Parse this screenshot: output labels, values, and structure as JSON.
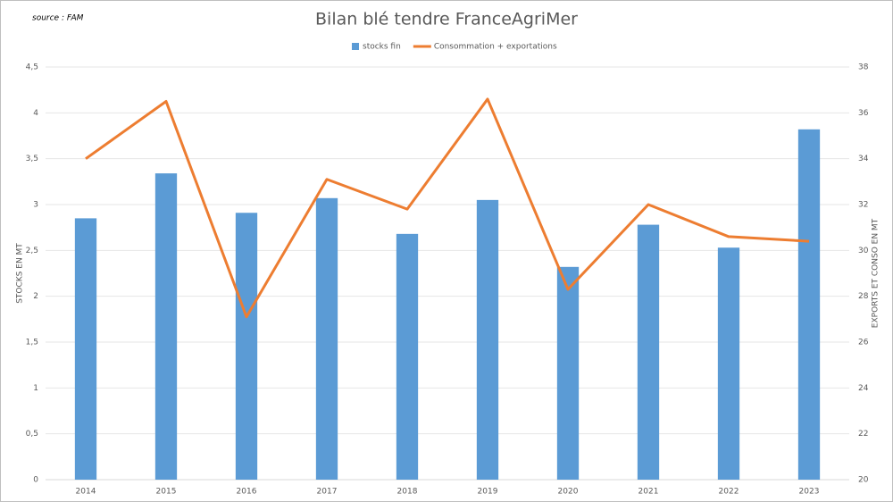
{
  "chart_data": {
    "type": "bar",
    "title": "Bilan blé tendre FranceAgriMer",
    "source": "source : FAM",
    "y_label": "STOCKS EN MT",
    "y2_label": "EXPORTS ET CONSO EN MT",
    "categories": [
      "2014",
      "2015",
      "2016",
      "2017",
      "2018",
      "2019",
      "2020",
      "2021",
      "2022",
      "2023"
    ],
    "series": [
      {
        "name": "stocks fin",
        "type": "bar",
        "color": "#5b9bd5",
        "values": [
          2.85,
          3.34,
          2.91,
          3.07,
          2.68,
          3.05,
          2.32,
          2.78,
          2.53,
          3.82
        ]
      },
      {
        "name": "Consommation + exportations",
        "type": "line",
        "axis": "y2",
        "color": "#ed7d31",
        "values": [
          34.0,
          36.5,
          27.1,
          33.1,
          31.8,
          36.6,
          28.3,
          32.0,
          30.6,
          30.4
        ]
      }
    ],
    "ylim": [
      0,
      4.5
    ],
    "yticks": [
      0,
      {
        "value": 0.5,
        "label": "0,5"
      },
      1,
      {
        "value": 1.5,
        "label": "1,5"
      },
      2,
      {
        "value": 2.5,
        "label": "2,5"
      },
      3,
      {
        "value": 3.5,
        "label": "3,5"
      },
      4,
      {
        "value": 4.5,
        "label": "4,5"
      }
    ],
    "y2lim": [
      20,
      38
    ],
    "y2ticks": [
      20,
      22,
      24,
      26,
      28,
      30,
      32,
      34,
      36,
      38
    ],
    "grid": true
  }
}
